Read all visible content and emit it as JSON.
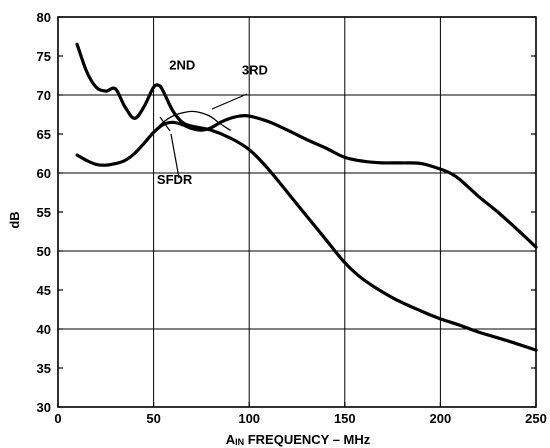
{
  "chart_data": {
    "type": "line",
    "title": "",
    "xlabel_prefix": "A",
    "xlabel_sub": "IN",
    "xlabel_rest": " FREQUENCY – MHz",
    "ylabel": "dB",
    "xlim": [
      0,
      250
    ],
    "ylim": [
      30,
      80
    ],
    "xticks": [
      0,
      50,
      100,
      150,
      200,
      250
    ],
    "yticks": [
      30,
      35,
      40,
      45,
      50,
      55,
      60,
      65,
      70,
      75,
      80
    ],
    "grid": true,
    "series": [
      {
        "name": "2ND",
        "x": [
          10,
          15,
          20,
          25,
          30,
          35,
          40,
          45,
          50,
          53,
          55,
          60,
          65,
          70,
          80,
          90,
          100,
          110,
          125,
          140,
          150,
          160,
          175,
          190,
          200,
          210,
          220,
          235,
          250
        ],
        "y": [
          76.5,
          73,
          71,
          70.5,
          70.8,
          68.5,
          67,
          68.5,
          71,
          71.2,
          70.5,
          68,
          66.5,
          66,
          65.5,
          64.5,
          63,
          60.5,
          56,
          51.5,
          48.5,
          46.3,
          44,
          42.3,
          41.3,
          40.5,
          39.6,
          38.5,
          37.3
        ]
      },
      {
        "name": "3RD",
        "x": [
          10,
          15,
          20,
          25,
          30,
          35,
          40,
          45,
          50,
          55,
          60,
          65,
          70,
          75,
          80,
          85,
          90,
          95,
          100,
          110,
          120,
          130,
          140,
          150,
          160,
          170,
          180,
          190,
          200,
          205,
          210,
          220,
          230,
          240,
          250
        ],
        "y": [
          62.3,
          61.6,
          61.1,
          61,
          61.2,
          61.6,
          62.5,
          63.8,
          65.2,
          66.2,
          66.5,
          66.2,
          65.7,
          65.5,
          65.8,
          66.5,
          67,
          67.3,
          67.3,
          66.6,
          65.5,
          64.3,
          63.2,
          62,
          61.5,
          61.3,
          61.3,
          61.2,
          60.5,
          60,
          59.2,
          57,
          55,
          52.8,
          50.5
        ]
      },
      {
        "name": "SFDR",
        "x": [
          50,
          55,
          60,
          65,
          70,
          75,
          80,
          85,
          90
        ],
        "y": [
          65.3,
          66.5,
          67.3,
          67.7,
          67.9,
          67.7,
          67.2,
          66.3,
          65.5
        ]
      }
    ],
    "annotations": [
      {
        "text": "2ND",
        "x": 65,
        "y": 73.3
      },
      {
        "text": "3RD",
        "x": 103,
        "y": 72.6
      },
      {
        "text": "SFDR",
        "x": 61,
        "y": 58.6
      }
    ]
  }
}
